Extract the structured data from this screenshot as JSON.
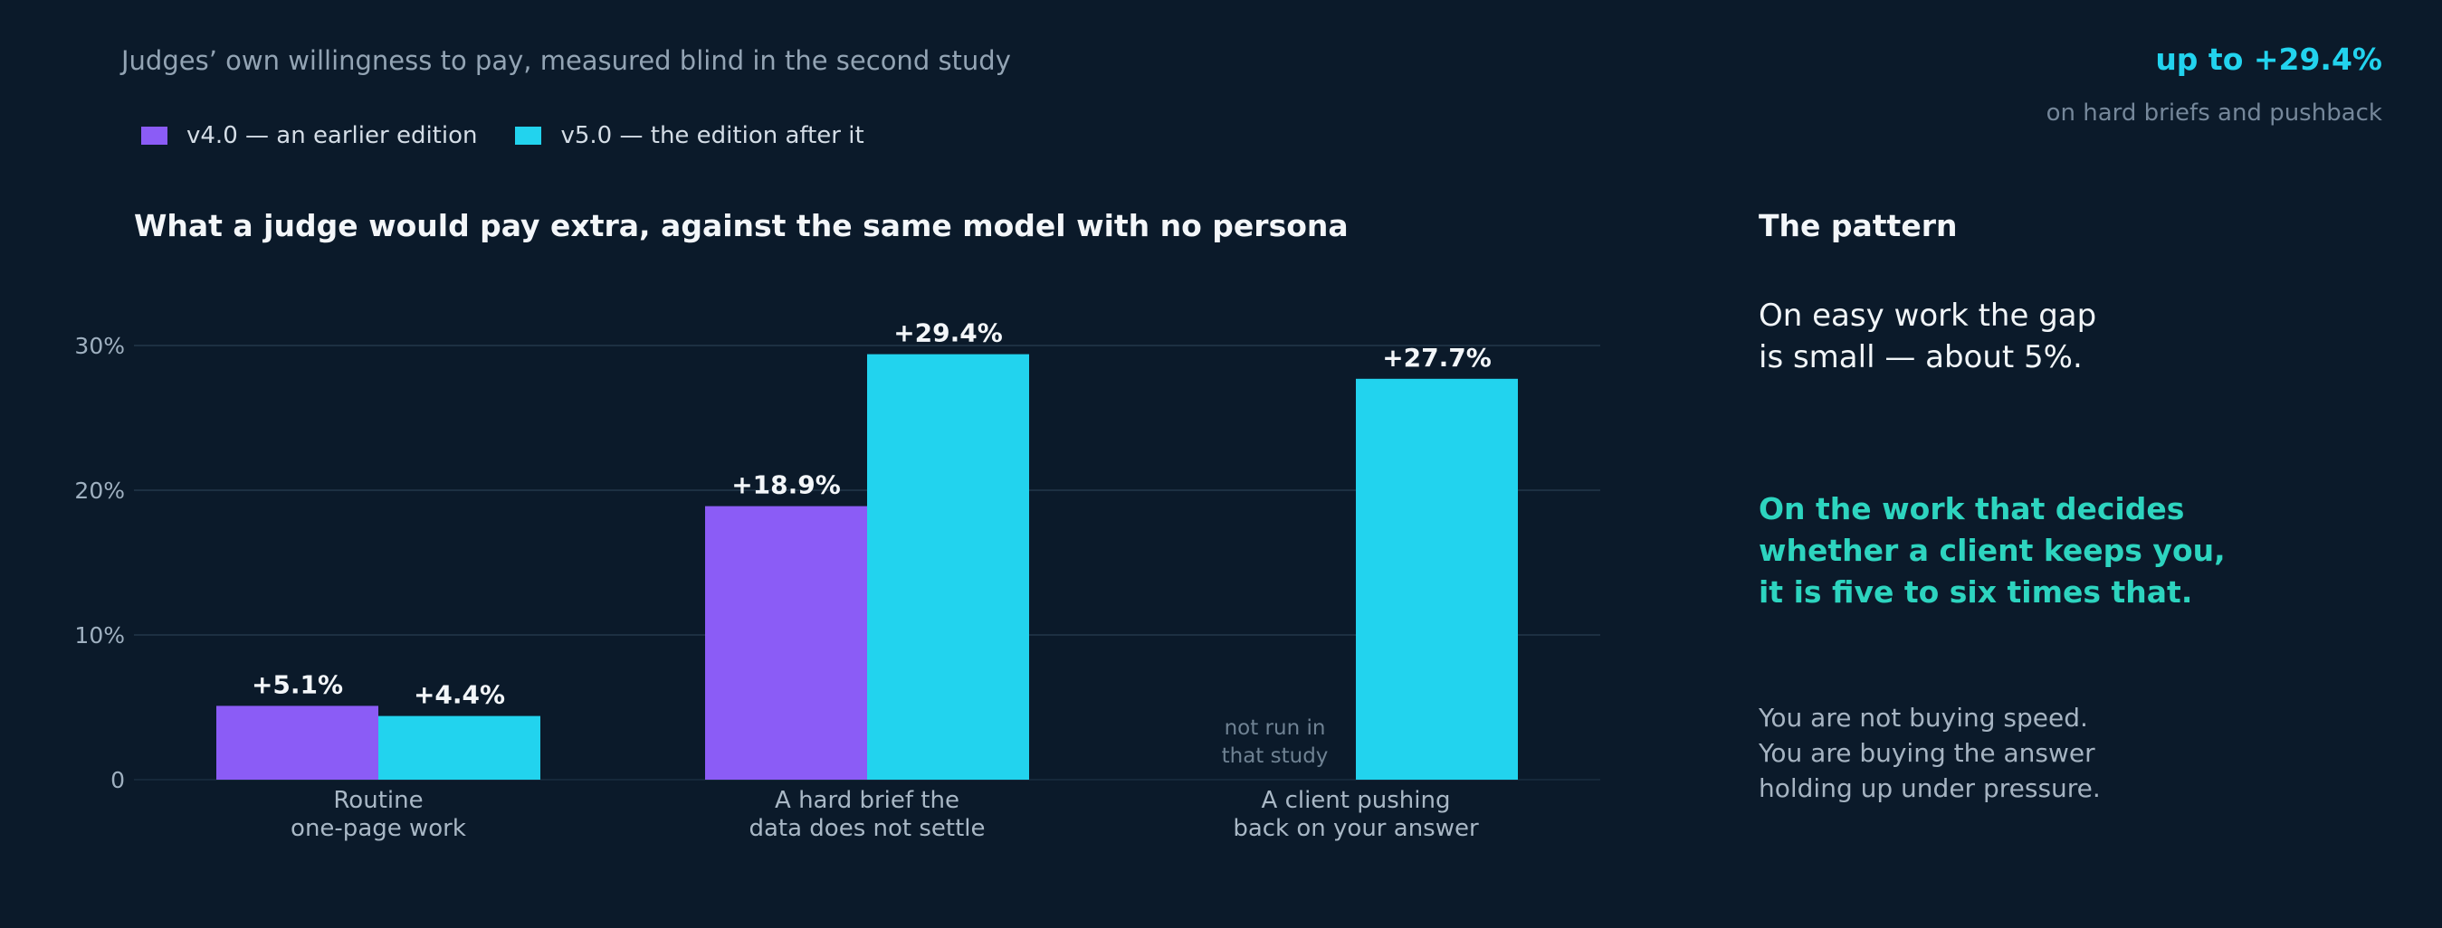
{
  "header": {
    "subtitle": "Judges’ own willingness to pay, measured blind in the second study",
    "headline_value": "up to +29.4%",
    "headline_note": "on hard briefs and pushback"
  },
  "legend": {
    "items": [
      {
        "label": "v4.0 — an earlier edition",
        "color": "#8b5cf6"
      },
      {
        "label": "v5.0 — the edition after it",
        "color": "#22d3ee"
      }
    ]
  },
  "chart_data": {
    "type": "bar",
    "title": "What a judge would pay extra, against the same model with no persona",
    "categories": [
      "Routine\none-page work",
      "A hard brief the\ndata does not settle",
      "A client pushing\nback on your answer"
    ],
    "series": [
      {
        "name": "v4.0 — an earlier edition",
        "color": "#8b5cf6",
        "values": [
          5.1,
          18.9,
          null
        ],
        "labels": [
          "+5.1%",
          "+18.9%",
          null
        ]
      },
      {
        "name": "v5.0 — the edition after it",
        "color": "#22d3ee",
        "values": [
          4.4,
          29.4,
          27.7
        ],
        "labels": [
          "+4.4%",
          "+29.4%",
          "+27.7%"
        ]
      }
    ],
    "ylim": [
      0,
      30
    ],
    "yticks": [
      0,
      10,
      20,
      30
    ],
    "ytick_labels": [
      "0",
      "10%",
      "20%",
      "30%"
    ],
    "grid": true,
    "missing_note": "not run in\nthat study",
    "xlabel": "",
    "ylabel": ""
  },
  "panel": {
    "title": "The pattern",
    "p1": "On easy work the gap\nis small — about 5%.",
    "p2": "On the work that decides\nwhether a client keeps you,\nit is five to six times that.",
    "p3": "You are not buying speed.\nYou are buying the answer\nholding up under pressure."
  }
}
